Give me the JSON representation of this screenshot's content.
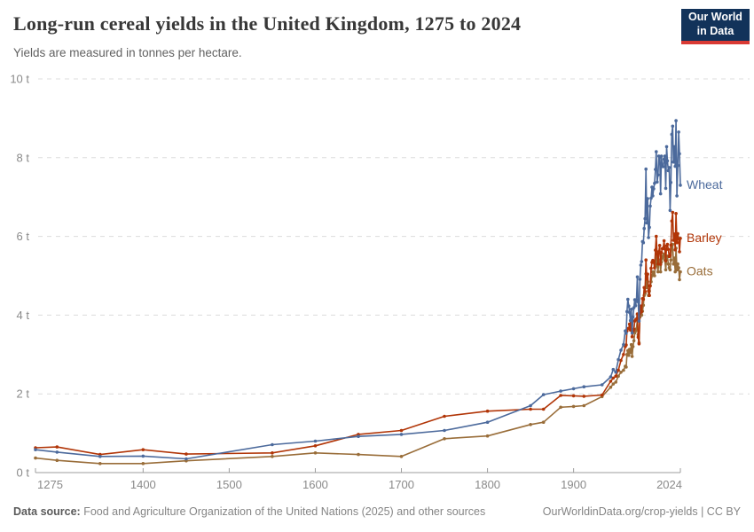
{
  "header": {
    "title": "Long-run cereal yields in the United Kingdom, 1275 to 2024",
    "subtitle": "Yields are measured in tonnes per hectare.",
    "logo": {
      "line1": "Our World",
      "line2": "in Data",
      "bg_color": "#12335a",
      "bar_color": "#d93a34"
    }
  },
  "footer": {
    "source_label": "Data source:",
    "source_text": " Food and Agriculture Organization of the United Nations (2025) and other sources",
    "credit": "OurWorldinData.org/crop-yields | CC BY"
  },
  "chart_data": {
    "type": "line",
    "title": "Long-run cereal yields in the United Kingdom, 1275 to 2024",
    "ylabel": "tonnes per hectare",
    "xlabel": "",
    "xlim": [
      1275,
      2024
    ],
    "ylim": [
      0,
      10
    ],
    "x_ticks": [
      1275,
      1400,
      1500,
      1600,
      1700,
      1800,
      1900,
      2024
    ],
    "y_ticks": [
      0,
      2,
      4,
      6,
      8,
      10
    ],
    "y_tick_suffix": " t",
    "grid": "horizontal-dashed",
    "legend_position": "end-of-line-labels",
    "axis_color": "#9e9e9e",
    "grid_color": "#dcdcdc",
    "tick_label_color": "#8a8a8a",
    "series": [
      {
        "name": "Oats",
        "color": "#996D39",
        "points": [
          [
            1275,
            0.37
          ],
          [
            1300,
            0.31
          ],
          [
            1350,
            0.23
          ],
          [
            1400,
            0.23
          ],
          [
            1450,
            0.3
          ],
          [
            1550,
            0.41
          ],
          [
            1600,
            0.5
          ],
          [
            1650,
            0.46
          ],
          [
            1700,
            0.41
          ],
          [
            1750,
            0.86
          ],
          [
            1800,
            0.93
          ],
          [
            1850,
            1.22
          ],
          [
            1865,
            1.28
          ],
          [
            1885,
            1.66
          ],
          [
            1900,
            1.68
          ],
          [
            1912,
            1.7
          ],
          [
            1933,
            1.93
          ],
          [
            1943,
            2.17
          ],
          [
            1946,
            2.25
          ],
          [
            1949,
            2.3
          ],
          [
            1952,
            2.45
          ],
          [
            1955,
            2.55
          ],
          [
            1958,
            2.6
          ],
          [
            1960,
            2.7
          ],
          [
            1961,
            2.68
          ],
          [
            1962,
            3.0
          ],
          [
            1963,
            3.1
          ],
          [
            1964,
            2.98
          ],
          [
            1965,
            3.13
          ],
          [
            1966,
            3.05
          ],
          [
            1967,
            3.25
          ],
          [
            1968,
            2.95
          ],
          [
            1969,
            3.2
          ],
          [
            1970,
            3.35
          ],
          [
            1971,
            3.55
          ],
          [
            1972,
            3.6
          ],
          [
            1973,
            3.65
          ],
          [
            1974,
            3.9
          ],
          [
            1975,
            3.5
          ],
          [
            1976,
            3.3
          ],
          [
            1977,
            3.95
          ],
          [
            1978,
            4.1
          ],
          [
            1979,
            4.0
          ],
          [
            1980,
            4.1
          ],
          [
            1981,
            4.25
          ],
          [
            1982,
            4.5
          ],
          [
            1983,
            4.55
          ],
          [
            1984,
            5.05
          ],
          [
            1985,
            4.7
          ],
          [
            1986,
            4.85
          ],
          [
            1987,
            4.5
          ],
          [
            1988,
            4.61
          ],
          [
            1989,
            4.75
          ],
          [
            1990,
            4.85
          ],
          [
            1991,
            5.0
          ],
          [
            1992,
            5.1
          ],
          [
            1993,
            5.05
          ],
          [
            1994,
            5.0
          ],
          [
            1995,
            5.3
          ],
          [
            1996,
            5.6
          ],
          [
            1997,
            5.25
          ],
          [
            1998,
            5.1
          ],
          [
            1999,
            5.35
          ],
          [
            2000,
            5.4
          ],
          [
            2001,
            5.1
          ],
          [
            2002,
            5.35
          ],
          [
            2003,
            5.45
          ],
          [
            2004,
            5.5
          ],
          [
            2005,
            5.55
          ],
          [
            2006,
            5.4
          ],
          [
            2007,
            5.15
          ],
          [
            2008,
            5.45
          ],
          [
            2009,
            5.5
          ],
          [
            2010,
            5.3
          ],
          [
            2011,
            5.2
          ],
          [
            2012,
            5.15
          ],
          [
            2013,
            5.4
          ],
          [
            2014,
            5.75
          ],
          [
            2015,
            5.8
          ],
          [
            2016,
            5.3
          ],
          [
            2017,
            5.45
          ],
          [
            2018,
            5.1
          ],
          [
            2019,
            5.7
          ],
          [
            2020,
            5.15
          ],
          [
            2021,
            5.3
          ],
          [
            2022,
            5.2
          ],
          [
            2023,
            4.9
          ],
          [
            2024,
            5.1
          ]
        ]
      },
      {
        "name": "Barley",
        "color": "#B13507",
        "points": [
          [
            1275,
            0.63
          ],
          [
            1300,
            0.65
          ],
          [
            1350,
            0.46
          ],
          [
            1400,
            0.58
          ],
          [
            1450,
            0.47
          ],
          [
            1550,
            0.5
          ],
          [
            1600,
            0.68
          ],
          [
            1650,
            0.97
          ],
          [
            1700,
            1.07
          ],
          [
            1750,
            1.43
          ],
          [
            1800,
            1.56
          ],
          [
            1850,
            1.61
          ],
          [
            1865,
            1.61
          ],
          [
            1885,
            1.96
          ],
          [
            1900,
            1.95
          ],
          [
            1912,
            1.94
          ],
          [
            1933,
            1.97
          ],
          [
            1943,
            2.32
          ],
          [
            1946,
            2.4
          ],
          [
            1949,
            2.45
          ],
          [
            1952,
            2.6
          ],
          [
            1955,
            2.85
          ],
          [
            1958,
            3.0
          ],
          [
            1960,
            3.2
          ],
          [
            1961,
            3.24
          ],
          [
            1962,
            3.6
          ],
          [
            1963,
            3.66
          ],
          [
            1964,
            3.66
          ],
          [
            1965,
            3.77
          ],
          [
            1966,
            3.62
          ],
          [
            1967,
            3.81
          ],
          [
            1968,
            3.45
          ],
          [
            1969,
            3.59
          ],
          [
            1970,
            3.64
          ],
          [
            1971,
            3.85
          ],
          [
            1972,
            3.88
          ],
          [
            1973,
            3.9
          ],
          [
            1974,
            4.03
          ],
          [
            1975,
            3.44
          ],
          [
            1976,
            3.27
          ],
          [
            1977,
            4.05
          ],
          [
            1978,
            4.23
          ],
          [
            1979,
            4.09
          ],
          [
            1980,
            4.42
          ],
          [
            1981,
            4.4
          ],
          [
            1982,
            4.7
          ],
          [
            1983,
            4.6
          ],
          [
            1984,
            5.4
          ],
          [
            1985,
            4.92
          ],
          [
            1986,
            5.04
          ],
          [
            1987,
            4.61
          ],
          [
            1988,
            4.5
          ],
          [
            1989,
            4.74
          ],
          [
            1990,
            5.19
          ],
          [
            1991,
            5.34
          ],
          [
            1992,
            5.39
          ],
          [
            1993,
            5.34
          ],
          [
            1994,
            5.2
          ],
          [
            1995,
            5.65
          ],
          [
            1996,
            6.0
          ],
          [
            1997,
            5.55
          ],
          [
            1998,
            5.3
          ],
          [
            1999,
            5.61
          ],
          [
            2000,
            5.77
          ],
          [
            2001,
            5.29
          ],
          [
            2002,
            5.59
          ],
          [
            2003,
            5.69
          ],
          [
            2004,
            5.7
          ],
          [
            2005,
            5.89
          ],
          [
            2006,
            5.68
          ],
          [
            2007,
            5.38
          ],
          [
            2008,
            5.76
          ],
          [
            2009,
            5.8
          ],
          [
            2010,
            5.67
          ],
          [
            2011,
            5.49
          ],
          [
            2012,
            5.52
          ],
          [
            2013,
            5.78
          ],
          [
            2014,
            6.39
          ],
          [
            2015,
            6.61
          ],
          [
            2016,
            5.9
          ],
          [
            2017,
            6.06
          ],
          [
            2018,
            5.66
          ],
          [
            2019,
            6.58
          ],
          [
            2020,
            5.84
          ],
          [
            2021,
            6.07
          ],
          [
            2022,
            5.94
          ],
          [
            2023,
            5.61
          ],
          [
            2024,
            5.95
          ]
        ]
      },
      {
        "name": "Wheat",
        "color": "#4C6A9C",
        "points": [
          [
            1275,
            0.58
          ],
          [
            1300,
            0.52
          ],
          [
            1350,
            0.41
          ],
          [
            1400,
            0.42
          ],
          [
            1450,
            0.35
          ],
          [
            1550,
            0.71
          ],
          [
            1600,
            0.8
          ],
          [
            1650,
            0.92
          ],
          [
            1700,
            0.97
          ],
          [
            1750,
            1.07
          ],
          [
            1800,
            1.28
          ],
          [
            1850,
            1.7
          ],
          [
            1865,
            1.98
          ],
          [
            1885,
            2.07
          ],
          [
            1900,
            2.13
          ],
          [
            1912,
            2.18
          ],
          [
            1933,
            2.23
          ],
          [
            1943,
            2.43
          ],
          [
            1946,
            2.62
          ],
          [
            1949,
            2.55
          ],
          [
            1952,
            2.87
          ],
          [
            1955,
            3.11
          ],
          [
            1958,
            3.25
          ],
          [
            1960,
            3.6
          ],
          [
            1961,
            3.54
          ],
          [
            1962,
            4.09
          ],
          [
            1963,
            4.4
          ],
          [
            1964,
            4.23
          ],
          [
            1965,
            4.07
          ],
          [
            1966,
            3.86
          ],
          [
            1967,
            4.15
          ],
          [
            1968,
            3.55
          ],
          [
            1969,
            3.95
          ],
          [
            1970,
            4.19
          ],
          [
            1971,
            4.39
          ],
          [
            1972,
            4.24
          ],
          [
            1973,
            4.38
          ],
          [
            1974,
            4.97
          ],
          [
            1975,
            4.34
          ],
          [
            1976,
            3.85
          ],
          [
            1977,
            4.91
          ],
          [
            1978,
            5.27
          ],
          [
            1979,
            5.36
          ],
          [
            1980,
            5.87
          ],
          [
            1981,
            5.84
          ],
          [
            1982,
            6.2
          ],
          [
            1983,
            6.45
          ],
          [
            1984,
            7.71
          ],
          [
            1985,
            6.34
          ],
          [
            1986,
            6.96
          ],
          [
            1987,
            5.97
          ],
          [
            1988,
            6.23
          ],
          [
            1989,
            6.77
          ],
          [
            1990,
            6.97
          ],
          [
            1991,
            7.25
          ],
          [
            1992,
            7.03
          ],
          [
            1993,
            7.21
          ],
          [
            1994,
            7.35
          ],
          [
            1995,
            7.7
          ],
          [
            1996,
            8.15
          ],
          [
            1997,
            7.38
          ],
          [
            1998,
            7.56
          ],
          [
            1999,
            8.04
          ],
          [
            2000,
            8.01
          ],
          [
            2001,
            7.08
          ],
          [
            2002,
            8.04
          ],
          [
            2003,
            7.78
          ],
          [
            2004,
            7.77
          ],
          [
            2005,
            7.96
          ],
          [
            2006,
            8.04
          ],
          [
            2007,
            7.22
          ],
          [
            2008,
            8.28
          ],
          [
            2009,
            7.92
          ],
          [
            2010,
            7.67
          ],
          [
            2011,
            7.75
          ],
          [
            2012,
            6.66
          ],
          [
            2013,
            7.37
          ],
          [
            2014,
            8.59
          ],
          [
            2015,
            8.8
          ],
          [
            2016,
            7.89
          ],
          [
            2017,
            8.28
          ],
          [
            2018,
            7.78
          ],
          [
            2019,
            8.94
          ],
          [
            2020,
            7.03
          ],
          [
            2021,
            7.8
          ],
          [
            2022,
            8.65
          ],
          [
            2023,
            8.1
          ],
          [
            2024,
            7.3
          ]
        ]
      }
    ]
  }
}
